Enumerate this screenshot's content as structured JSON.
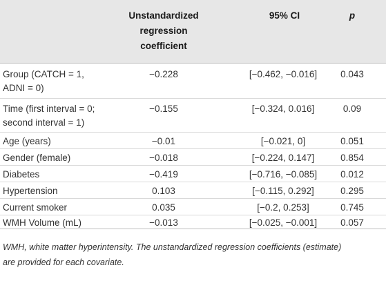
{
  "table": {
    "headers": [
      "",
      "Unstandardized regression coefficient",
      "95% CI",
      "p"
    ],
    "header_lines": {
      "coef": [
        "Unstandardized",
        "regression",
        "coefficient"
      ],
      "ci": "95% CI",
      "p": "p"
    },
    "rows": [
      {
        "label_lines": [
          "Group (CATCH = 1,",
          "ADNI = 0)"
        ],
        "coef": "−0.228",
        "ci": "[−0.462, −0.016]",
        "p": "0.043"
      },
      {
        "label_lines": [
          "Time (first interval = 0;",
          "second interval = 1)"
        ],
        "coef": "−0.155",
        "ci": "[−0.324, 0.016]",
        "p": "0.09"
      },
      {
        "label_lines": [
          "Age (years)"
        ],
        "coef": "−0.01",
        "ci": "[−0.021, 0]",
        "p": "0.051"
      },
      {
        "label_lines": [
          "Gender (female)"
        ],
        "coef": "−0.018",
        "ci": "[−0.224, 0.147]",
        "p": "0.854"
      },
      {
        "label_lines": [
          "Diabetes"
        ],
        "coef": "−0.419",
        "ci": "[−0.716, −0.085]",
        "p": "0.012"
      },
      {
        "label_lines": [
          "Hypertension"
        ],
        "coef": "0.103",
        "ci": "[−0.115, 0.292]",
        "p": "0.295"
      },
      {
        "label_lines": [
          "Current smoker"
        ],
        "coef": "0.035",
        "ci": "[−0.2, 0.253]",
        "p": "0.745"
      },
      {
        "label_lines": [
          "WMH Volume (mL)"
        ],
        "coef": "−0.013",
        "ci": "[−0.025, −0.001]",
        "p": "0.057"
      }
    ]
  },
  "footnote": {
    "line1": "WMH, white matter hyperintensity. The unstandardized regression coefficients (estimate)",
    "line2": "are provided for each covariate."
  }
}
